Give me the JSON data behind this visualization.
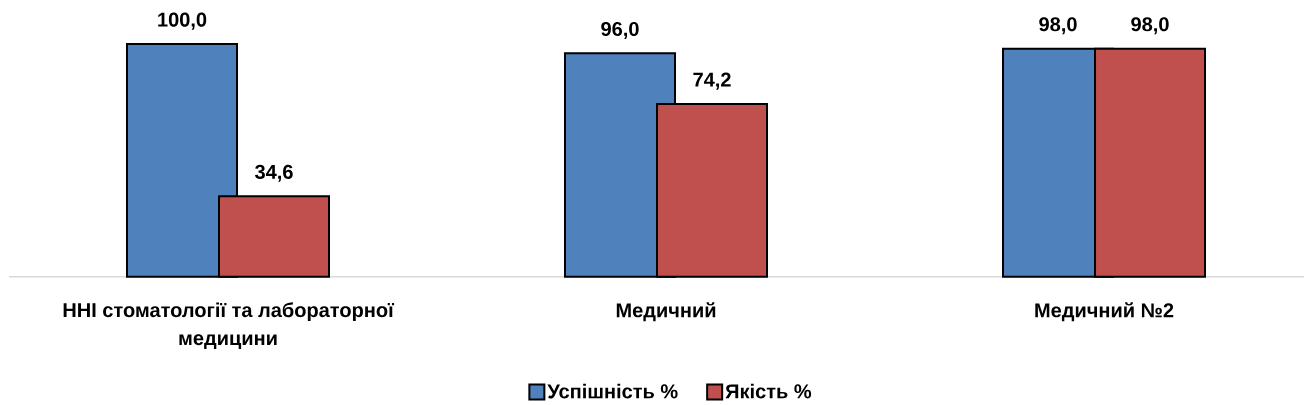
{
  "chart_data": {
    "type": "bar",
    "categories": [
      "ННІ стоматології та лабораторної медицини",
      "Медичний",
      "Медичний №2"
    ],
    "series": [
      {
        "name": "Успішність %",
        "color": "#4f81bd",
        "values": [
          100.0,
          96.0,
          98.0
        ],
        "value_labels": [
          "100,0",
          "96,0",
          "98,0"
        ]
      },
      {
        "name": "Якість %",
        "color": "#c0504d",
        "values": [
          34.6,
          74.2,
          98.0
        ],
        "value_labels": [
          "34,6",
          "74,2",
          "98,0"
        ]
      }
    ],
    "legend": "bottom",
    "tick_labels": "x"
  }
}
